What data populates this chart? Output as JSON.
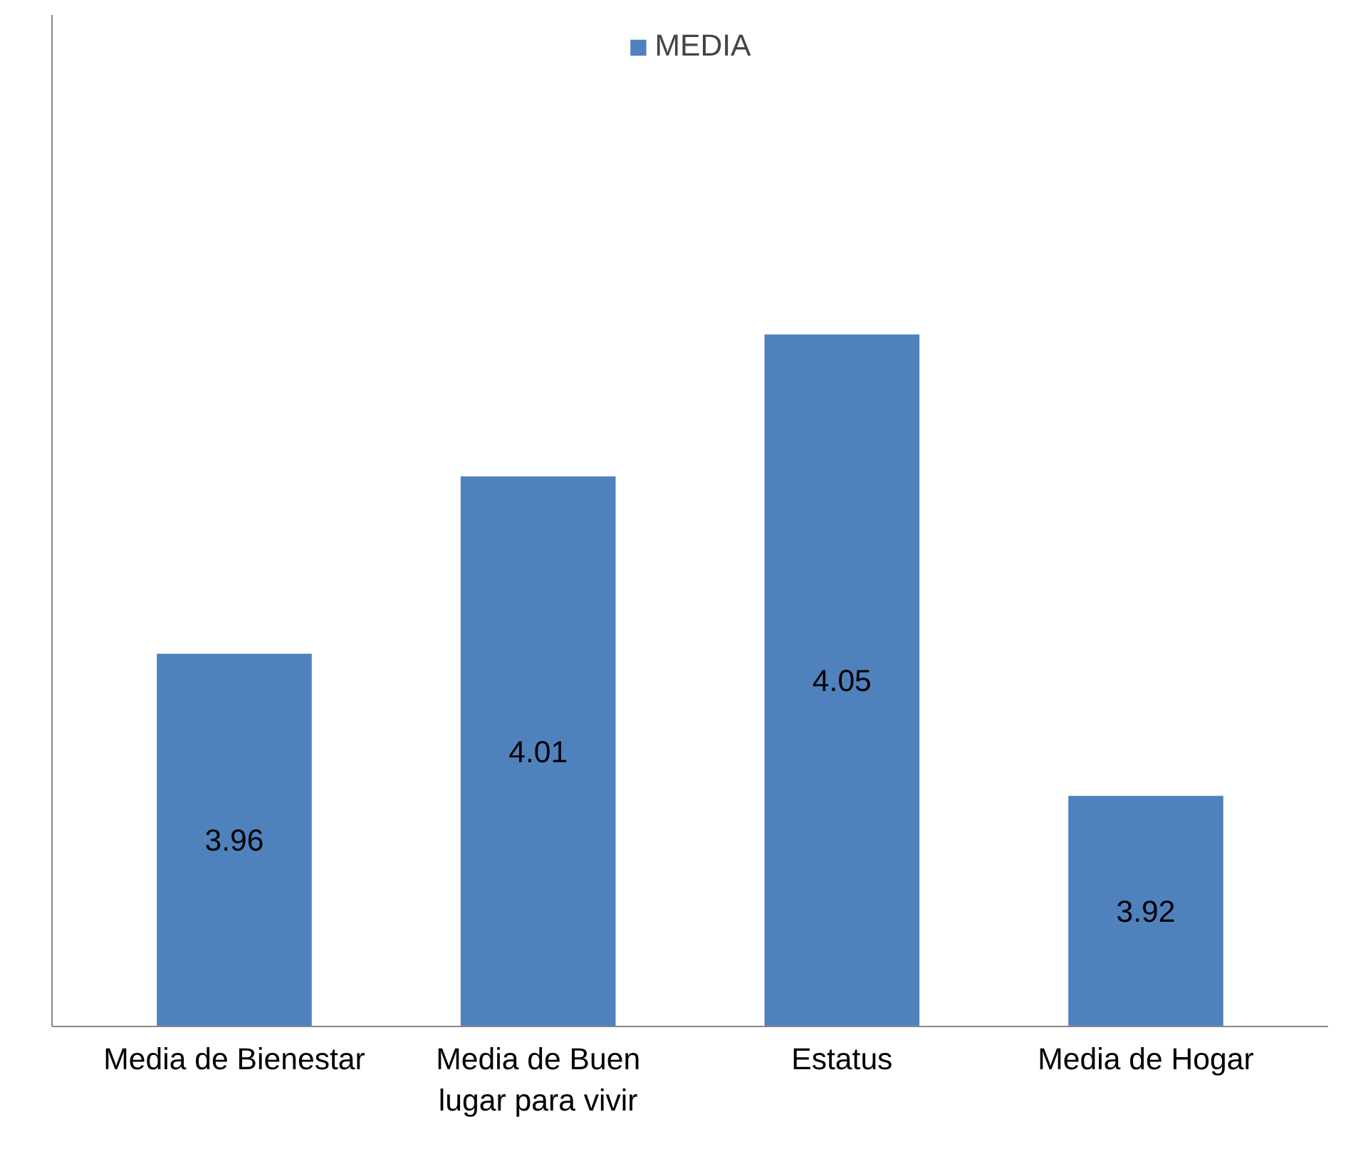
{
  "chart_data": {
    "type": "bar",
    "categories": [
      "Media de Bienestar",
      "Media de Buen\nlugar para vivir",
      "Estatus",
      "Media de Hogar"
    ],
    "series": [
      {
        "name": "MEDIA",
        "color": "#4f81bd",
        "values": [
          3.96,
          4.01,
          4.05,
          3.92
        ]
      }
    ],
    "ylim": [
      3.855,
      4.14
    ],
    "tick_labels": "x",
    "data_labels": true,
    "legend": "top",
    "grid": false
  }
}
